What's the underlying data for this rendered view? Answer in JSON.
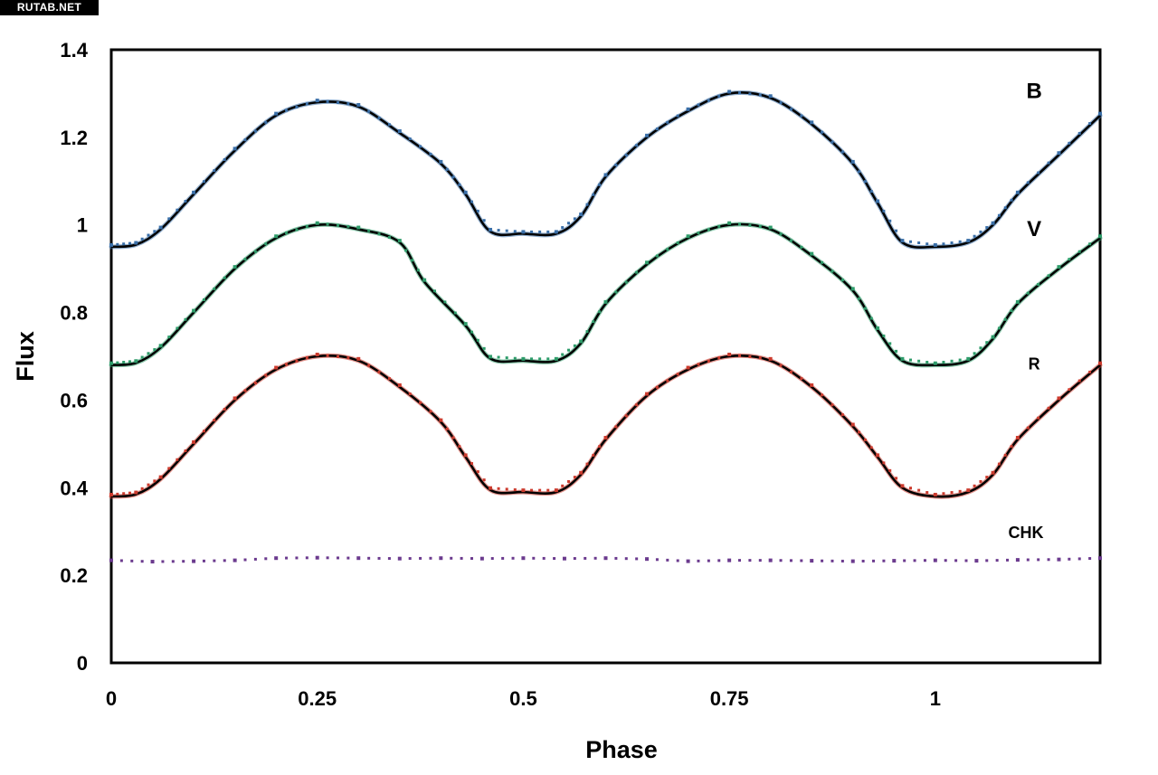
{
  "watermark": "RUTAB.NET",
  "chart_data": {
    "type": "scatter",
    "title": "",
    "xlabel": "Phase",
    "ylabel": "Flux",
    "xlim": [
      0,
      1.2
    ],
    "ylim": [
      0,
      1.4
    ],
    "xticks": [
      0,
      0.25,
      0.5,
      0.75,
      1
    ],
    "xtick_labels": [
      "0",
      "0.25",
      "0.5",
      "0.75",
      "1"
    ],
    "yticks": [
      0,
      0.2,
      0.4,
      0.6,
      0.8,
      1,
      1.2,
      1.4
    ],
    "ytick_labels": [
      "0",
      "0.2",
      "0.4",
      "0.6",
      "0.8",
      "1",
      "1.2",
      "1.4"
    ],
    "grid": false,
    "legend": "inline labels at right",
    "series": [
      {
        "name": "B",
        "color": "#3a6fa8",
        "fit_color": "#000000",
        "label_x": 1.12,
        "label_y": 1.29,
        "x": [
          0,
          0.03,
          0.06,
          0.1,
          0.15,
          0.2,
          0.25,
          0.3,
          0.35,
          0.4,
          0.43,
          0.46,
          0.5,
          0.54,
          0.57,
          0.6,
          0.65,
          0.7,
          0.75,
          0.8,
          0.85,
          0.9,
          0.93,
          0.96,
          1,
          1.04,
          1.07,
          1.1,
          1.15,
          1.2
        ],
        "y": [
          0.95,
          0.955,
          0.99,
          1.07,
          1.17,
          1.25,
          1.28,
          1.27,
          1.21,
          1.14,
          1.07,
          0.985,
          0.98,
          0.98,
          1.02,
          1.11,
          1.2,
          1.26,
          1.3,
          1.29,
          1.23,
          1.14,
          1.05,
          0.96,
          0.95,
          0.96,
          1.0,
          1.07,
          1.16,
          1.25
        ]
      },
      {
        "name": "V",
        "color": "#2e9c6a",
        "fit_color": "#000000",
        "label_x": 1.12,
        "label_y": 0.975,
        "x": [
          0,
          0.03,
          0.06,
          0.1,
          0.15,
          0.2,
          0.25,
          0.3,
          0.35,
          0.38,
          0.43,
          0.46,
          0.5,
          0.54,
          0.57,
          0.6,
          0.65,
          0.7,
          0.75,
          0.8,
          0.85,
          0.9,
          0.93,
          0.96,
          1,
          1.04,
          1.07,
          1.1,
          1.15,
          1.2
        ],
        "y": [
          0.68,
          0.685,
          0.72,
          0.8,
          0.9,
          0.97,
          1.0,
          0.99,
          0.96,
          0.87,
          0.77,
          0.695,
          0.69,
          0.69,
          0.73,
          0.82,
          0.91,
          0.97,
          1.0,
          0.99,
          0.93,
          0.85,
          0.76,
          0.69,
          0.68,
          0.69,
          0.74,
          0.82,
          0.9,
          0.97
        ]
      },
      {
        "name": "R",
        "color": "#cc3b2e",
        "fit_color": "#000000",
        "label_x": 1.12,
        "label_y": 0.67,
        "x": [
          0,
          0.03,
          0.06,
          0.1,
          0.15,
          0.2,
          0.25,
          0.3,
          0.35,
          0.4,
          0.43,
          0.46,
          0.5,
          0.54,
          0.57,
          0.6,
          0.65,
          0.7,
          0.75,
          0.8,
          0.85,
          0.9,
          0.93,
          0.96,
          1,
          1.04,
          1.07,
          1.1,
          1.15,
          1.2
        ],
        "y": [
          0.38,
          0.385,
          0.42,
          0.5,
          0.6,
          0.67,
          0.7,
          0.69,
          0.63,
          0.55,
          0.47,
          0.395,
          0.39,
          0.39,
          0.43,
          0.51,
          0.61,
          0.67,
          0.7,
          0.69,
          0.63,
          0.54,
          0.47,
          0.4,
          0.38,
          0.39,
          0.43,
          0.51,
          0.6,
          0.68
        ]
      },
      {
        "name": "CHK",
        "color": "#6b3a8e",
        "label_x": 1.11,
        "label_y": 0.285,
        "x": [
          0,
          0.05,
          0.1,
          0.15,
          0.2,
          0.25,
          0.3,
          0.35,
          0.4,
          0.45,
          0.5,
          0.55,
          0.6,
          0.65,
          0.7,
          0.75,
          0.8,
          0.85,
          0.9,
          0.95,
          1,
          1.05,
          1.1,
          1.15,
          1.2
        ],
        "y": [
          0.23,
          0.227,
          0.228,
          0.23,
          0.235,
          0.236,
          0.235,
          0.234,
          0.235,
          0.234,
          0.235,
          0.234,
          0.235,
          0.233,
          0.228,
          0.23,
          0.23,
          0.229,
          0.228,
          0.229,
          0.23,
          0.229,
          0.231,
          0.232,
          0.235
        ]
      }
    ]
  }
}
